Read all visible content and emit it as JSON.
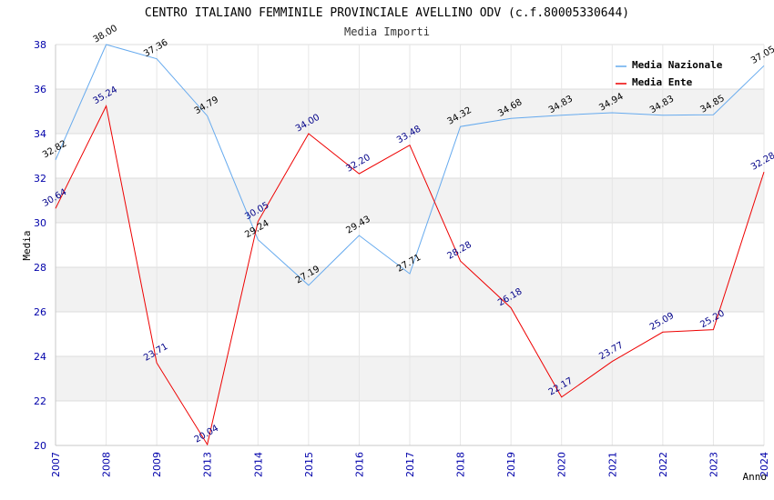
{
  "chart_data": {
    "type": "line",
    "title": "CENTRO ITALIANO FEMMINILE PROVINCIALE AVELLINO ODV (c.f.80005330644)",
    "subtitle": "Media Importi",
    "xlabel": "Anno",
    "ylabel": "Media",
    "ylim": [
      20,
      38
    ],
    "yticks": [
      "20",
      "22",
      "24",
      "26",
      "28",
      "30",
      "32",
      "34",
      "36",
      "38"
    ],
    "categories": [
      "2007",
      "2008",
      "2009",
      "2013",
      "2014",
      "2015",
      "2016",
      "2017",
      "2018",
      "2019",
      "2020",
      "2021",
      "2022",
      "2023",
      "2024"
    ],
    "legend_position": "top-right",
    "series": [
      {
        "name": "Media Nazionale",
        "color": "#66aaee",
        "label_color": "#000000",
        "values": [
          32.82,
          38.0,
          37.36,
          34.79,
          29.24,
          27.19,
          29.43,
          27.71,
          34.32,
          34.68,
          34.83,
          34.94,
          34.83,
          34.85,
          37.05
        ],
        "labels": [
          "32.82",
          "38.00",
          "37.36",
          "34.79",
          "29.24",
          "27.19",
          "29.43",
          "27.71",
          "34.32",
          "34.68",
          "34.83",
          "34.94",
          "34.83",
          "34.85",
          "37.05"
        ]
      },
      {
        "name": "Media Ente",
        "color": "#ee0000",
        "label_color": "#000088",
        "values": [
          30.64,
          35.24,
          23.71,
          20.04,
          30.05,
          34.0,
          32.2,
          33.48,
          28.28,
          26.18,
          22.17,
          23.77,
          25.09,
          25.2,
          32.28
        ],
        "labels": [
          "30.64",
          "35.24",
          "23.71",
          "20.04",
          "30.05",
          "34.00",
          "32.20",
          "33.48",
          "28.28",
          "26.18",
          "22.17",
          "23.77",
          "25.09",
          "25.20",
          "32.28"
        ]
      }
    ]
  }
}
